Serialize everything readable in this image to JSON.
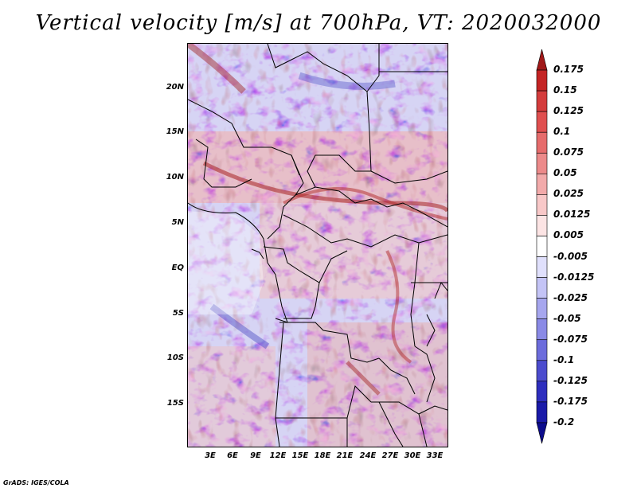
{
  "title": "Vertical velocity [m/s] at 700hPa, VT: 2020032000",
  "credit": "GrADS: IGES/COLA",
  "lat_labels": [
    "20N",
    "15N",
    "10N",
    "5N",
    "EQ",
    "5S",
    "10S",
    "15S"
  ],
  "lon_labels": [
    "3E",
    "6E",
    "9E",
    "12E",
    "15E",
    "18E",
    "21E",
    "24E",
    "27E",
    "30E",
    "33E"
  ],
  "colorbar": {
    "labels": [
      "0.175",
      "0.15",
      "0.125",
      "0.1",
      "0.075",
      "0.05",
      "0.025",
      "0.0125",
      "0.005",
      "-0.005",
      "-0.0125",
      "-0.025",
      "-0.05",
      "-0.075",
      "-0.1",
      "-0.125",
      "-0.175",
      "-0.2"
    ],
    "colors": [
      "#a01818",
      "#c42424",
      "#d43c3c",
      "#e05050",
      "#e66c6c",
      "#ec8a8a",
      "#f2aaaa",
      "#f8c8c8",
      "#fce4e4",
      "#ffffff",
      "#e0e0fc",
      "#c4c4f6",
      "#a6a6ee",
      "#8a8ae6",
      "#6c6cdc",
      "#4c4cce",
      "#2e2ebe",
      "#1a1aa8",
      "#0c0c8c"
    ]
  },
  "colors": {
    "red": "#d23c3c",
    "blue": "#4646c8",
    "border": "#000000"
  }
}
